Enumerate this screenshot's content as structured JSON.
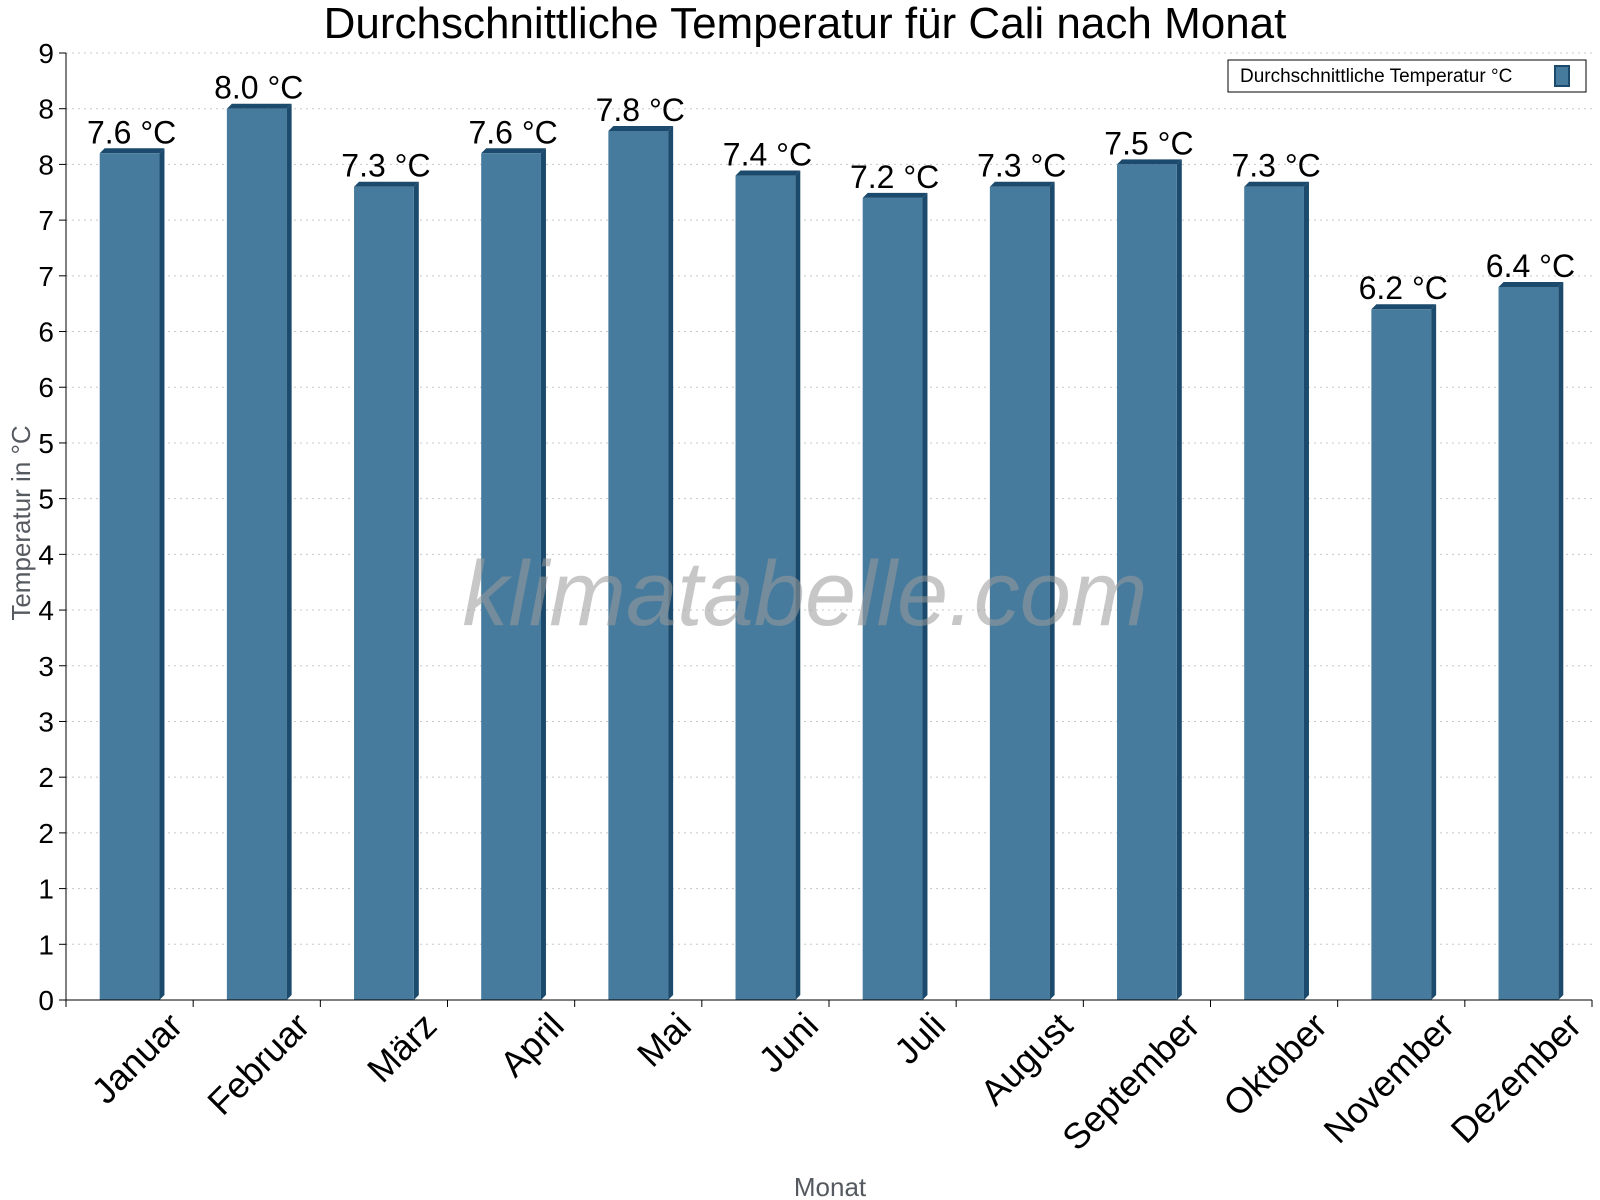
{
  "chart_data": {
    "type": "bar",
    "title": "Durchschnittliche Temperatur für Cali nach Monat",
    "xlabel": "Monat",
    "ylabel": "Temperatur in °C",
    "ylim": [
      0,
      8.5
    ],
    "ytick_values": [
      0,
      0.5,
      1,
      1.5,
      2,
      2.5,
      3,
      3.5,
      4,
      4.5,
      5,
      5.5,
      6,
      6.5,
      7,
      7.5,
      8,
      8.5
    ],
    "ytick_labels": [
      "0",
      "1",
      "1",
      "2",
      "2",
      "3",
      "3",
      "4",
      "4",
      "5",
      "5",
      "6",
      "6",
      "7",
      "7",
      "8",
      "8",
      "9"
    ],
    "categories": [
      "Januar",
      "Februar",
      "März",
      "April",
      "Mai",
      "Juni",
      "Juli",
      "August",
      "September",
      "Oktober",
      "November",
      "Dezember"
    ],
    "series": [
      {
        "name": "Durchschnittliche Temperatur °C",
        "values": [
          7.6,
          8.0,
          7.3,
          7.6,
          7.8,
          7.4,
          7.2,
          7.3,
          7.5,
          7.3,
          6.2,
          6.4
        ],
        "labels": [
          "7.6 °C",
          "8.0 °C",
          "7.3 °C",
          "7.6 °C",
          "7.8 °C",
          "7.4 °C",
          "7.2 °C",
          "7.3 °C",
          "7.5 °C",
          "7.3 °C",
          "6.2 °C",
          "6.4 °C"
        ],
        "color": "#467b9d",
        "shade_color": "#1c4a6c"
      }
    ],
    "grid": true,
    "legend_position": "top-right",
    "watermark": "klimatabelle.com"
  }
}
